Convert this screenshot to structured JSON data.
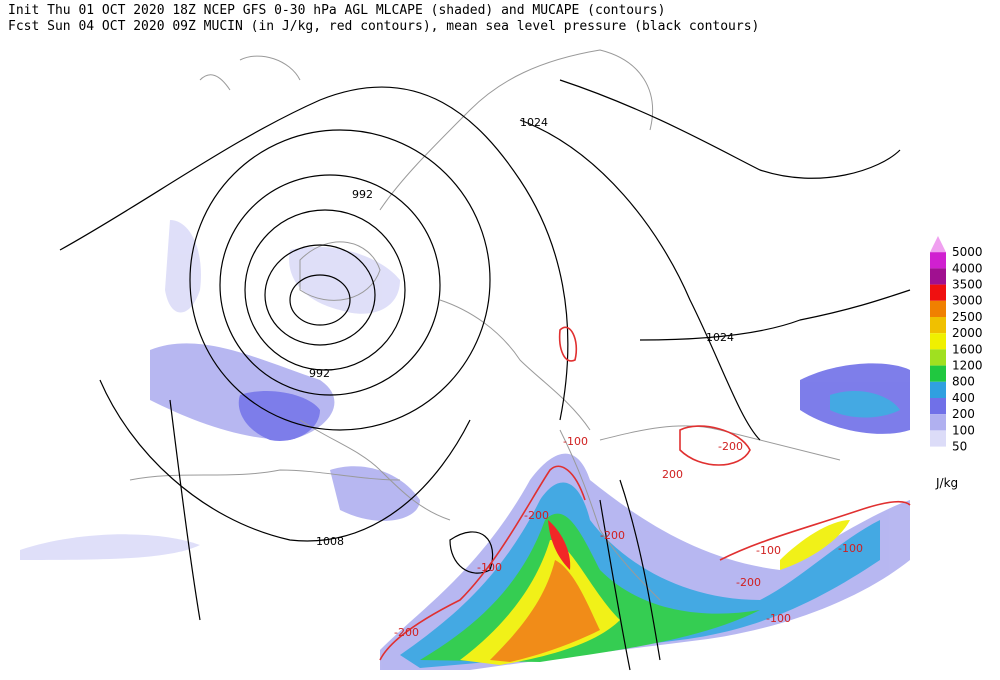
{
  "header": {
    "line1": "Init  Thu 01 OCT 2020 18Z  NCEP GFS 0-30 hPa AGL MLCAPE (shaded) and MUCAPE (contours)",
    "line2": "Fcst Sun 04 OCT 2020 09Z  MUCIN (in J/kg, red contours), mean sea level pressure (black contours)"
  },
  "pressure_labels": [
    "1024",
    "992",
    "992",
    "1024",
    "1008"
  ],
  "cin_labels": [
    "-100",
    "-200",
    "-200",
    "-100",
    "-200",
    "-200",
    "200",
    "-100",
    "-100",
    "-200",
    "-100"
  ],
  "legend": {
    "unit": "J/kg",
    "levels": [
      {
        "label": "5000",
        "color": "#f0a0f0"
      },
      {
        "label": "4000",
        "color": "#d020d0"
      },
      {
        "label": "3500",
        "color": "#a01090"
      },
      {
        "label": "3000",
        "color": "#f01010"
      },
      {
        "label": "2500",
        "color": "#f08000"
      },
      {
        "label": "2000",
        "color": "#f0c000"
      },
      {
        "label": "1600",
        "color": "#f0f000"
      },
      {
        "label": "1200",
        "color": "#a0e020"
      },
      {
        "label": "800",
        "color": "#20c840"
      },
      {
        "label": "400",
        "color": "#30a0e0"
      },
      {
        "label": "200",
        "color": "#7070e8"
      },
      {
        "label": "100",
        "color": "#b0b0f0"
      },
      {
        "label": "50",
        "color": "#dcdcf8"
      }
    ]
  }
}
